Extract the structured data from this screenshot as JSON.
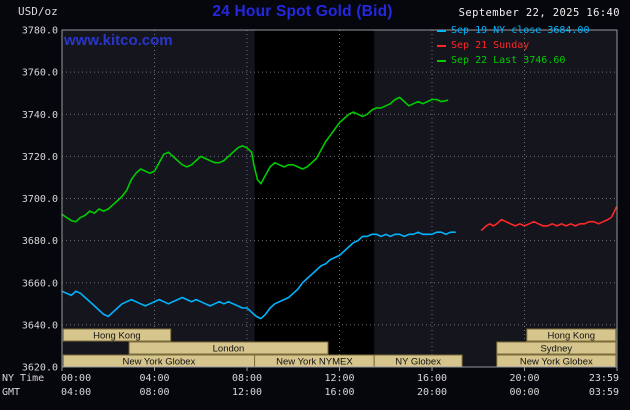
{
  "header": {
    "unit_label": "USD/oz",
    "title": "24 Hour Spot Gold (Bid)",
    "datetime": "September 22, 2025 16:40",
    "watermark": "www.kitco.com",
    "title_color": "#2428e0",
    "watermark_color": "#2936cc"
  },
  "legend": {
    "items": [
      {
        "label": "Sep 19 NY close 3684.00",
        "color": "#00b4ff"
      },
      {
        "label": "Sep 21 Sunday",
        "color": "#ff2828"
      },
      {
        "label": "Sep 22 Last 3746.60",
        "color": "#00cc00"
      }
    ]
  },
  "axes": {
    "y_tick_labels": [
      "3780.0",
      "3760.0",
      "3740.0",
      "3720.0",
      "3700.0",
      "3680.0",
      "3660.0",
      "3640.0",
      "3620.0"
    ],
    "x_row1_label": "NY Time",
    "x_row2_label": "GMT",
    "x_row1_ticks": [
      "00:00",
      "04:00",
      "08:00",
      "12:00",
      "16:00",
      "20:00",
      "23:59"
    ],
    "x_row2_ticks": [
      "04:00",
      "08:00",
      "12:00",
      "16:00",
      "20:00",
      "00:00",
      "03:59"
    ]
  },
  "sessions": [
    {
      "row": 0,
      "label": "Hong Kong",
      "start": 0.05,
      "end": 4.7
    },
    {
      "row": 0,
      "label": "Hong Kong",
      "start": 20.1,
      "end": 23.95
    },
    {
      "row": 1,
      "label": "London",
      "start": 2.9,
      "end": 11.5
    },
    {
      "row": 1,
      "label": "Sydney",
      "start": 18.8,
      "end": 23.95
    },
    {
      "row": 2,
      "label": "New York Globex",
      "start": 0.05,
      "end": 8.33
    },
    {
      "row": 2,
      "label": "New York NYMEX",
      "start": 8.33,
      "end": 13.5
    },
    {
      "row": 2,
      "label": "NY Globex",
      "start": 13.5,
      "end": 17.3
    },
    {
      "row": 2,
      "label": "New York Globex",
      "start": 18.8,
      "end": 23.95
    }
  ],
  "colors": {
    "page_bg": "#06060d",
    "plot_bg": "#15151d",
    "band": "#000000",
    "grid": "#6e6e78",
    "border": "#9898a0",
    "axis_text": "#d8d8d8",
    "session_fill": "#d6c68e",
    "session_border": "#7a6c3a",
    "session_text": "#111111"
  },
  "chart_data": {
    "type": "line",
    "title": "24 Hour Spot Gold (Bid)",
    "ylabel": "USD/oz",
    "ylim": [
      3620,
      3780
    ],
    "xlim_hours": [
      0,
      24
    ],
    "y_ticks": [
      3620,
      3640,
      3660,
      3680,
      3700,
      3720,
      3740,
      3760,
      3780
    ],
    "x_tick_hours": [
      0,
      4,
      8,
      12,
      16,
      20,
      24
    ],
    "nymex_shading_hours": [
      8.33,
      13.5
    ],
    "legend_position": "top-right",
    "grid": true,
    "series": [
      {
        "name": "Sep 19 NY close",
        "close_value": 3684.0,
        "color": "#00b4ff",
        "points": [
          [
            0,
            3656
          ],
          [
            0.2,
            3655
          ],
          [
            0.4,
            3654
          ],
          [
            0.6,
            3656
          ],
          [
            0.8,
            3655
          ],
          [
            1.0,
            3653
          ],
          [
            1.2,
            3651
          ],
          [
            1.4,
            3649
          ],
          [
            1.6,
            3647
          ],
          [
            1.8,
            3645
          ],
          [
            2.0,
            3644
          ],
          [
            2.2,
            3646
          ],
          [
            2.4,
            3648
          ],
          [
            2.6,
            3650
          ],
          [
            2.8,
            3651
          ],
          [
            3.0,
            3652
          ],
          [
            3.2,
            3651
          ],
          [
            3.4,
            3650
          ],
          [
            3.6,
            3649
          ],
          [
            3.8,
            3650
          ],
          [
            4.0,
            3651
          ],
          [
            4.2,
            3652
          ],
          [
            4.4,
            3651
          ],
          [
            4.6,
            3650
          ],
          [
            4.8,
            3651
          ],
          [
            5.0,
            3652
          ],
          [
            5.2,
            3653
          ],
          [
            5.4,
            3652
          ],
          [
            5.6,
            3651
          ],
          [
            5.8,
            3652
          ],
          [
            6.0,
            3651
          ],
          [
            6.2,
            3650
          ],
          [
            6.4,
            3649
          ],
          [
            6.6,
            3650
          ],
          [
            6.8,
            3651
          ],
          [
            7.0,
            3650
          ],
          [
            7.2,
            3651
          ],
          [
            7.4,
            3650
          ],
          [
            7.6,
            3649
          ],
          [
            7.8,
            3648
          ],
          [
            8.0,
            3648
          ],
          [
            8.2,
            3646
          ],
          [
            8.4,
            3644
          ],
          [
            8.6,
            3643
          ],
          [
            8.8,
            3645
          ],
          [
            9.0,
            3648
          ],
          [
            9.2,
            3650
          ],
          [
            9.4,
            3651
          ],
          [
            9.6,
            3652
          ],
          [
            9.8,
            3653
          ],
          [
            10.0,
            3655
          ],
          [
            10.2,
            3657
          ],
          [
            10.4,
            3660
          ],
          [
            10.6,
            3662
          ],
          [
            10.8,
            3664
          ],
          [
            11.0,
            3666
          ],
          [
            11.2,
            3668
          ],
          [
            11.4,
            3669
          ],
          [
            11.6,
            3671
          ],
          [
            11.8,
            3672
          ],
          [
            12.0,
            3673
          ],
          [
            12.2,
            3675
          ],
          [
            12.4,
            3677
          ],
          [
            12.6,
            3679
          ],
          [
            12.8,
            3680
          ],
          [
            13.0,
            3682
          ],
          [
            13.2,
            3682
          ],
          [
            13.4,
            3683
          ],
          [
            13.6,
            3683
          ],
          [
            13.8,
            3682
          ],
          [
            14.0,
            3683
          ],
          [
            14.2,
            3682
          ],
          [
            14.4,
            3683
          ],
          [
            14.6,
            3683
          ],
          [
            14.8,
            3682
          ],
          [
            15.0,
            3683
          ],
          [
            15.2,
            3683
          ],
          [
            15.4,
            3684
          ],
          [
            15.6,
            3683
          ],
          [
            15.8,
            3683
          ],
          [
            16.0,
            3683
          ],
          [
            16.2,
            3684
          ],
          [
            16.4,
            3684
          ],
          [
            16.6,
            3683
          ],
          [
            16.8,
            3684
          ],
          [
            17.0,
            3684
          ]
        ]
      },
      {
        "name": "Sep 21 Sunday",
        "color": "#ff2828",
        "points": [
          [
            18.15,
            3685
          ],
          [
            18.35,
            3687
          ],
          [
            18.5,
            3688
          ],
          [
            18.65,
            3687
          ],
          [
            18.8,
            3688
          ],
          [
            19.0,
            3690
          ],
          [
            19.2,
            3689
          ],
          [
            19.4,
            3688
          ],
          [
            19.6,
            3687
          ],
          [
            19.8,
            3688
          ],
          [
            20.0,
            3687
          ],
          [
            20.2,
            3688
          ],
          [
            20.4,
            3689
          ],
          [
            20.6,
            3688
          ],
          [
            20.8,
            3687
          ],
          [
            21.0,
            3687
          ],
          [
            21.2,
            3688
          ],
          [
            21.4,
            3687
          ],
          [
            21.6,
            3688
          ],
          [
            21.8,
            3687
          ],
          [
            22.0,
            3688
          ],
          [
            22.2,
            3687
          ],
          [
            22.4,
            3688
          ],
          [
            22.6,
            3688
          ],
          [
            22.8,
            3689
          ],
          [
            23.0,
            3689
          ],
          [
            23.2,
            3688
          ],
          [
            23.4,
            3689
          ],
          [
            23.6,
            3690
          ],
          [
            23.75,
            3691
          ],
          [
            23.85,
            3693
          ],
          [
            23.98,
            3696
          ]
        ]
      },
      {
        "name": "Sep 22 Last",
        "last_value": 3746.6,
        "color": "#00cc00",
        "points": [
          [
            0,
            3692.5
          ],
          [
            0.2,
            3691
          ],
          [
            0.4,
            3689.5
          ],
          [
            0.6,
            3689
          ],
          [
            0.8,
            3691
          ],
          [
            1.0,
            3692
          ],
          [
            1.2,
            3694
          ],
          [
            1.4,
            3693
          ],
          [
            1.6,
            3695
          ],
          [
            1.8,
            3694
          ],
          [
            2.0,
            3695
          ],
          [
            2.2,
            3697
          ],
          [
            2.4,
            3699
          ],
          [
            2.6,
            3701
          ],
          [
            2.8,
            3704
          ],
          [
            3.0,
            3709
          ],
          [
            3.2,
            3712
          ],
          [
            3.4,
            3714
          ],
          [
            3.6,
            3713
          ],
          [
            3.8,
            3712
          ],
          [
            4.0,
            3713
          ],
          [
            4.2,
            3717
          ],
          [
            4.4,
            3721
          ],
          [
            4.6,
            3722
          ],
          [
            4.8,
            3720
          ],
          [
            5.0,
            3718
          ],
          [
            5.2,
            3716
          ],
          [
            5.4,
            3715
          ],
          [
            5.6,
            3716
          ],
          [
            5.8,
            3718
          ],
          [
            6.0,
            3720
          ],
          [
            6.2,
            3719
          ],
          [
            6.4,
            3718
          ],
          [
            6.6,
            3717
          ],
          [
            6.8,
            3717
          ],
          [
            7.0,
            3718
          ],
          [
            7.2,
            3720
          ],
          [
            7.4,
            3722
          ],
          [
            7.6,
            3724
          ],
          [
            7.8,
            3725
          ],
          [
            8.0,
            3724
          ],
          [
            8.2,
            3722
          ],
          [
            8.3,
            3716
          ],
          [
            8.45,
            3709
          ],
          [
            8.6,
            3707
          ],
          [
            8.75,
            3710
          ],
          [
            9.0,
            3715
          ],
          [
            9.2,
            3717
          ],
          [
            9.4,
            3716
          ],
          [
            9.6,
            3715
          ],
          [
            9.8,
            3716
          ],
          [
            10.0,
            3716
          ],
          [
            10.2,
            3715
          ],
          [
            10.4,
            3714
          ],
          [
            10.6,
            3715
          ],
          [
            10.8,
            3717
          ],
          [
            11.0,
            3719
          ],
          [
            11.2,
            3723
          ],
          [
            11.4,
            3727
          ],
          [
            11.6,
            3730
          ],
          [
            11.8,
            3733
          ],
          [
            12.0,
            3736
          ],
          [
            12.2,
            3738
          ],
          [
            12.4,
            3740
          ],
          [
            12.6,
            3741
          ],
          [
            12.8,
            3740
          ],
          [
            13.0,
            3739
          ],
          [
            13.2,
            3740
          ],
          [
            13.4,
            3742
          ],
          [
            13.6,
            3743
          ],
          [
            13.8,
            3743
          ],
          [
            14.0,
            3744
          ],
          [
            14.2,
            3745
          ],
          [
            14.4,
            3747
          ],
          [
            14.6,
            3748
          ],
          [
            14.8,
            3746
          ],
          [
            15.0,
            3744
          ],
          [
            15.2,
            3745
          ],
          [
            15.4,
            3746
          ],
          [
            15.6,
            3745
          ],
          [
            15.8,
            3746
          ],
          [
            16.0,
            3747
          ],
          [
            16.2,
            3747
          ],
          [
            16.4,
            3746
          ],
          [
            16.67,
            3746.6
          ]
        ]
      }
    ]
  }
}
